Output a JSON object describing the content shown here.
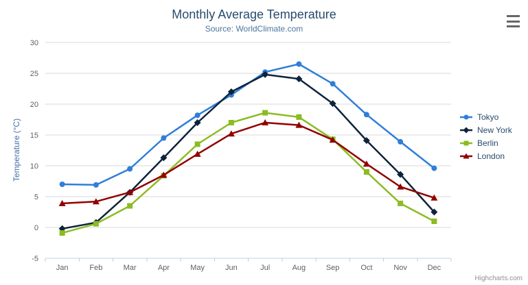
{
  "chart": {
    "export_icon": "hamburger-menu-icon",
    "legend_position": "right"
  },
  "chart_data": {
    "type": "line",
    "title": "Monthly Average Temperature",
    "subtitle": "Source: WorldClimate.com",
    "credits": "Highcharts.com",
    "categories": [
      "Jan",
      "Feb",
      "Mar",
      "Apr",
      "May",
      "Jun",
      "Jul",
      "Aug",
      "Sep",
      "Oct",
      "Nov",
      "Dec"
    ],
    "xlabel": "",
    "ylabel": "Temperature (°C)",
    "ylim": [
      -5,
      30
    ],
    "yticks": [
      -5,
      0,
      5,
      10,
      15,
      20,
      25,
      30
    ],
    "grid": "horizontal",
    "legend_position": "right",
    "series": [
      {
        "name": "Tokyo",
        "color": "#2f7ed8",
        "marker": "circle",
        "values": [
          7.0,
          6.9,
          9.5,
          14.5,
          18.2,
          21.5,
          25.2,
          26.5,
          23.3,
          18.3,
          13.9,
          9.6
        ]
      },
      {
        "name": "New York",
        "color": "#0d233a",
        "marker": "diamond",
        "values": [
          -0.2,
          0.8,
          5.7,
          11.3,
          17.0,
          22.0,
          24.8,
          24.1,
          20.1,
          14.1,
          8.6,
          2.5
        ]
      },
      {
        "name": "Berlin",
        "color": "#8bbc21",
        "marker": "square",
        "values": [
          -0.9,
          0.6,
          3.5,
          8.4,
          13.5,
          17.0,
          18.6,
          17.9,
          14.3,
          9.0,
          3.9,
          1.0
        ]
      },
      {
        "name": "London",
        "color": "#910000",
        "marker": "triangle",
        "values": [
          3.9,
          4.2,
          5.7,
          8.5,
          11.9,
          15.2,
          17.0,
          16.6,
          14.2,
          10.3,
          6.6,
          4.8
        ]
      }
    ],
    "colors": {
      "title": "#274b6d",
      "subtitle": "#4d759e",
      "axis_title": "#4572a7",
      "axis_labels": "#606060",
      "gridline": "#d8d8d8",
      "axis_line": "#c0d0e0",
      "legend_text": "#274b6d",
      "credits": "#909090",
      "export_icon": "#666666"
    }
  }
}
